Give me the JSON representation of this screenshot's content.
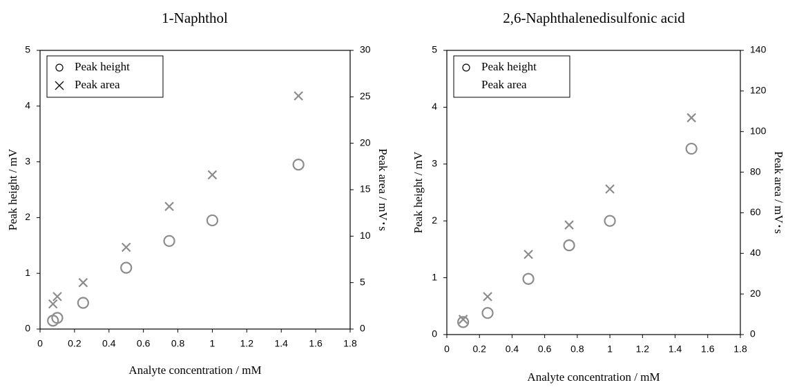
{
  "chart_data": [
    {
      "type": "scatter",
      "title": "1-Naphthol",
      "xlabel": "Analyte concentration / mM",
      "ylabel": "Peak height / mV",
      "y2label": "Peak area / mV･s",
      "xlim": [
        0,
        1.8
      ],
      "xticks": [
        0,
        0.2,
        0.4,
        0.6,
        0.8,
        1,
        1.2,
        1.4,
        1.6,
        1.8
      ],
      "ylim": [
        0,
        5
      ],
      "yticks": [
        0,
        1,
        2,
        3,
        4,
        5
      ],
      "y2lim": [
        0,
        30
      ],
      "y2ticks": [
        0,
        5,
        10,
        15,
        20,
        25,
        30
      ],
      "legend": "upper left",
      "series": [
        {
          "name": "Peak height",
          "marker": "circle",
          "color": "#8c8c8c",
          "axis": "y",
          "x": [
            0.075,
            0.1,
            0.25,
            0.5,
            0.75,
            1,
            1.5
          ],
          "values": [
            0.15,
            0.2,
            0.47,
            1.1,
            1.58,
            1.95,
            2.95
          ]
        },
        {
          "name": "Peak area",
          "marker": "cross",
          "color": "#8c8c8c",
          "axis": "y2",
          "x": [
            0.075,
            0.1,
            0.25,
            0.5,
            0.75,
            1,
            1.5
          ],
          "values": [
            2.7,
            3.5,
            5.0,
            8.8,
            13.2,
            16.6,
            25.1
          ]
        }
      ]
    },
    {
      "type": "scatter",
      "title": "2,6-Naphthalenedisulfonic  acid",
      "xlabel": "Analyte concentration / mM",
      "ylabel": "Peak height / mV",
      "y2label": "Peak area / mV･s",
      "xlim": [
        0,
        1.8
      ],
      "xticks": [
        0,
        0.2,
        0.4,
        0.6,
        0.8,
        1,
        1.2,
        1.4,
        1.6,
        1.8
      ],
      "ylim": [
        0,
        5
      ],
      "yticks": [
        0,
        1,
        2,
        3,
        4,
        5
      ],
      "y2lim": [
        0,
        140
      ],
      "y2ticks": [
        0,
        20,
        40,
        60,
        80,
        100,
        120,
        140
      ],
      "legend": "upper left",
      "series": [
        {
          "name": "Peak height",
          "marker": "circle",
          "color": "#8c8c8c",
          "axis": "y",
          "x": [
            0.1,
            0.25,
            0.5,
            0.75,
            1,
            1.5
          ],
          "values": [
            0.22,
            0.38,
            0.98,
            1.57,
            2.0,
            3.27
          ]
        },
        {
          "name": "Peak area",
          "marker": "cross",
          "color": "#8c8c8c",
          "axis": "y2",
          "x": [
            0.1,
            0.25,
            0.5,
            0.75,
            1,
            1.5
          ],
          "values": [
            7.5,
            18.7,
            39.5,
            54,
            71.7,
            106.8
          ]
        }
      ]
    }
  ]
}
